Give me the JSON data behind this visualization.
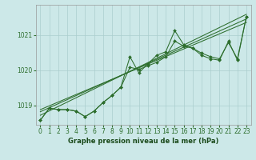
{
  "title": "Graphe pression niveau de la mer (hPa)",
  "x_ticks": [
    0,
    1,
    2,
    3,
    4,
    5,
    6,
    7,
    8,
    9,
    10,
    11,
    12,
    13,
    14,
    15,
    16,
    17,
    18,
    19,
    20,
    21,
    22,
    23
  ],
  "y_ticks": [
    1019,
    1020,
    1021
  ],
  "xlim": [
    -0.5,
    23.5
  ],
  "ylim": [
    1018.45,
    1021.85
  ],
  "bg_color": "#cce8e8",
  "grid_color": "#aacece",
  "line_color": "#2d6e2d",
  "marker_color": "#2d6e2d",
  "series1": [
    1018.58,
    1018.92,
    1018.88,
    1018.88,
    1018.84,
    1018.68,
    1018.84,
    1019.08,
    1019.28,
    1019.52,
    1020.38,
    1019.92,
    1020.18,
    1020.42,
    1020.52,
    1021.12,
    1020.72,
    1020.62,
    1020.42,
    1020.32,
    1020.28,
    1020.82,
    1020.28,
    1021.52
  ],
  "series2": [
    1018.58,
    1018.92,
    1018.88,
    1018.88,
    1018.84,
    1018.68,
    1018.84,
    1019.08,
    1019.28,
    1019.52,
    1020.08,
    1020.02,
    1020.12,
    1020.22,
    1020.38,
    1020.82,
    1020.68,
    1020.62,
    1020.48,
    1020.38,
    1020.32,
    1020.78,
    1020.32,
    1021.52
  ],
  "trend1_x": [
    0,
    23
  ],
  "trend1_y": [
    1018.72,
    1021.58
  ],
  "trend2_x": [
    0,
    23
  ],
  "trend2_y": [
    1018.82,
    1021.45
  ],
  "trend3_x": [
    0,
    23
  ],
  "trend3_y": [
    1018.88,
    1021.35
  ],
  "xlabel_fontsize": 6.0,
  "tick_fontsize": 5.5
}
